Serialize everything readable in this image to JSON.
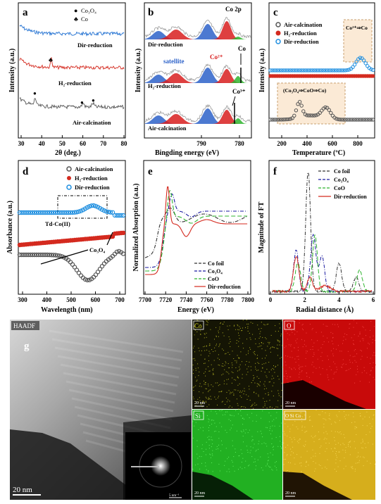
{
  "panels": {
    "a": {
      "letter": "a",
      "ylabel": "Intensity (a.u.)",
      "xlabel": "2θ (deg.)",
      "xticks": [
        "30",
        "40",
        "50",
        "60",
        "70",
        "80"
      ],
      "legend": [
        {
          "marker": "●",
          "label": "Co₃O₄"
        },
        {
          "marker": "♣",
          "label": "Co"
        }
      ],
      "curves": [
        {
          "name": "Dir-reduction",
          "color": "#1f6fd1"
        },
        {
          "name": "H₂-reduction",
          "color": "#d42a1f"
        },
        {
          "name": "Air-calcination",
          "color": "#555555"
        }
      ]
    },
    "b": {
      "letter": "b",
      "ylabel": "Intensity (a.u.)",
      "xlabel": "Bingding energy (eV)",
      "xticks": [
        "790",
        "780"
      ],
      "title": "Co 2p",
      "curves": [
        {
          "name": "Dir-reduction"
        },
        {
          "name": "H₂-reduction"
        },
        {
          "name": "Air-calcination"
        }
      ],
      "annotations": {
        "satellite": "satellite",
        "co2": "Co²⁺",
        "co": "Co",
        "co3": "Co³⁺"
      },
      "colors": {
        "blue": "#2d62c9",
        "red": "#d81f1f",
        "green": "#2fb52f"
      }
    },
    "c": {
      "letter": "c",
      "ylabel": "Intensity (a.u.)",
      "xlabel": "Temperature (ºC)",
      "xticks": [
        "200",
        "400",
        "600",
        "800"
      ],
      "legend": [
        {
          "label": "Air-calcination",
          "color": "#555555"
        },
        {
          "label": "H₂-reduction",
          "color": "#d42a1f"
        },
        {
          "label": "Dir-reduction",
          "color": "#1f8fe0"
        }
      ],
      "box1": "Co²⁺⇒Co",
      "box2": "(Co₃O₄⇒CoO⇒Co)"
    },
    "d": {
      "letter": "d",
      "ylabel": "Absorbance (a.u.)",
      "xlabel": "Wavelength (nm)",
      "xticks": [
        "300",
        "400",
        "500",
        "600",
        "700"
      ],
      "legend": [
        {
          "label": "Air-calcination",
          "color": "#555555"
        },
        {
          "label": "H₂-reduction",
          "color": "#d42a1f"
        },
        {
          "label": "Dir-reduction",
          "color": "#1f8fe0"
        }
      ],
      "box": "T<sub>d</sub>-Co(II)",
      "box_text": "Td-Co(II)",
      "arrow_label": "Co₃O₄"
    },
    "e": {
      "letter": "e",
      "ylabel": "Normalized Absorption (a.u.)",
      "xlabel": "Energy (eV)",
      "xticks": [
        "7700",
        "7720",
        "7740",
        "7760",
        "7780",
        "7800"
      ],
      "legend": [
        {
          "label": "Co foil",
          "color": "#333333"
        },
        {
          "label": "Co₃O₄",
          "color": "#1a1aa0"
        },
        {
          "label": "CoO",
          "color": "#2fb52f"
        },
        {
          "label": "Dir-reduction",
          "color": "#d42a1f"
        }
      ]
    },
    "f": {
      "letter": "f",
      "ylabel": "Magnitude of FT",
      "xlabel": "Radial distance (Å)",
      "xticks": [
        "0",
        "2",
        "4",
        "6"
      ],
      "legend": [
        {
          "label": "Co foil",
          "color": "#333333"
        },
        {
          "label": "Co₃O₄",
          "color": "#1a1aa0"
        },
        {
          "label": "CoO",
          "color": "#2fb52f"
        },
        {
          "label": "Dir-reduction",
          "color": "#d42a1f"
        }
      ]
    },
    "g": {
      "letter": "g",
      "haadf": "HAADF",
      "scale_main": "20 nm",
      "scale_inset": "5 nm⁻¹",
      "maps": [
        {
          "label": "Co",
          "color": "#d6d62a",
          "bg": "#111100",
          "scale": "20 nm"
        },
        {
          "label": "O",
          "color": "#e01010",
          "bg": "#c80000",
          "scale": "20 nm"
        },
        {
          "label": "Si",
          "color": "#2fd02f",
          "bg": "#26b426",
          "scale": "20 nm"
        },
        {
          "label": "O Si Co",
          "color": "#e8c020",
          "bg": "#d8b020",
          "scale": "20 nm"
        }
      ]
    }
  }
}
